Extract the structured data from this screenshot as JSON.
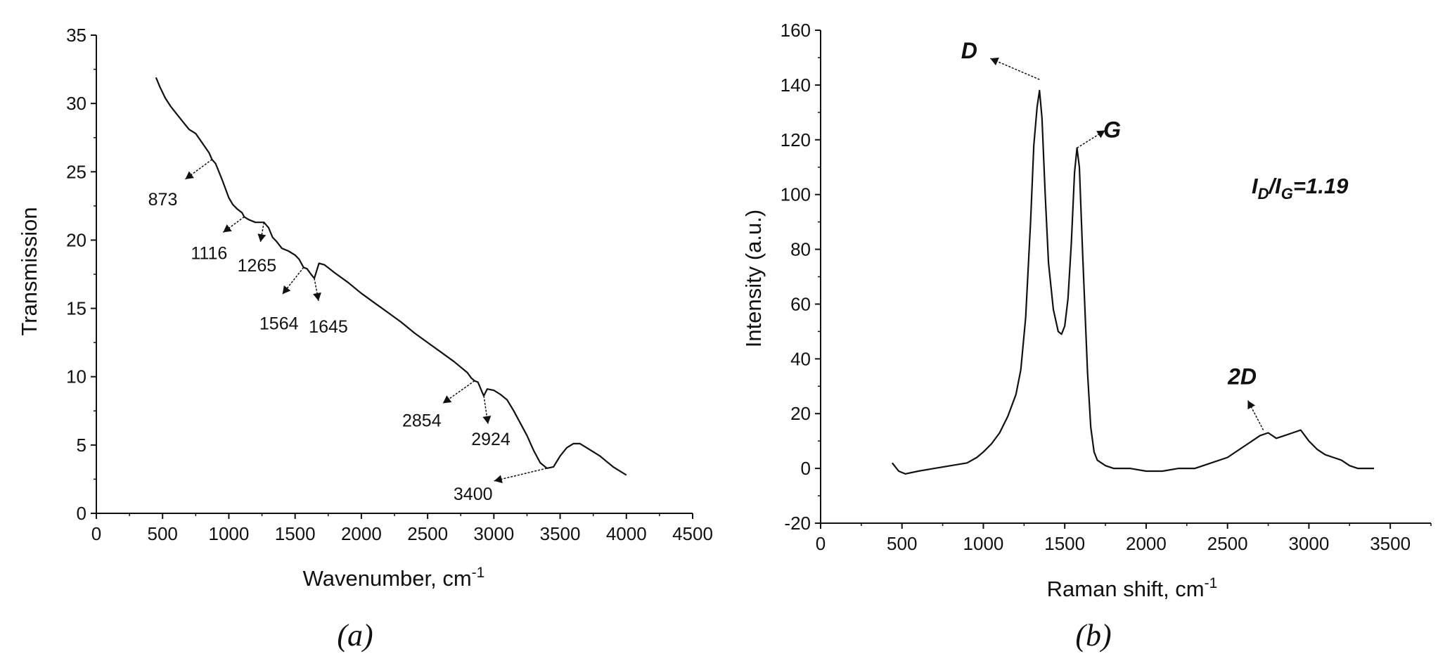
{
  "panels": {
    "a": {
      "caption": "(a)"
    },
    "b": {
      "caption": "(b)"
    }
  },
  "chart_data": [
    {
      "type": "line",
      "xlabel": "Wavenumber, cm",
      "xlabel_sup": "-1",
      "ylabel": "Transmission",
      "xlim": [
        0,
        4500
      ],
      "ylim": [
        0,
        35
      ],
      "xticks": [
        "0",
        "500",
        "1000",
        "1500",
        "2000",
        "2500",
        "3000",
        "3500",
        "4000",
        "4500"
      ],
      "yticks": [
        "0",
        "5",
        "10",
        "15",
        "20",
        "25",
        "30",
        "35"
      ],
      "grid": false,
      "color": "#111111",
      "series": [
        {
          "x": [
            450,
            480,
            520,
            560,
            600,
            650,
            700,
            750,
            800,
            850,
            873,
            900,
            950,
            1000,
            1030,
            1060,
            1100,
            1116,
            1150,
            1200,
            1265,
            1300,
            1330,
            1360,
            1400,
            1450,
            1500,
            1530,
            1564,
            1590,
            1620,
            1645,
            1680,
            1720,
            1760,
            1800,
            1900,
            2000,
            2100,
            2200,
            2300,
            2400,
            2500,
            2600,
            2700,
            2800,
            2830,
            2854,
            2880,
            2910,
            2924,
            2950,
            3000,
            3050,
            3100,
            3150,
            3200,
            3250,
            3300,
            3350,
            3400,
            3450,
            3500,
            3550,
            3600,
            3650,
            3700,
            3750,
            3800,
            3850,
            3900,
            3950,
            4000
          ],
          "y": [
            31.9,
            31.2,
            30.4,
            29.8,
            29.3,
            28.7,
            28.1,
            27.8,
            27.1,
            26.4,
            25.9,
            25.6,
            24.4,
            23.1,
            22.6,
            22.3,
            22.0,
            21.7,
            21.5,
            21.3,
            21.3,
            20.9,
            20.2,
            19.9,
            19.4,
            19.2,
            18.9,
            18.6,
            18.0,
            17.9,
            17.5,
            17.2,
            18.3,
            18.2,
            17.9,
            17.6,
            16.9,
            16.1,
            15.4,
            14.7,
            14.0,
            13.2,
            12.5,
            11.8,
            11.1,
            10.3,
            9.9,
            9.7,
            9.6,
            8.9,
            8.6,
            9.1,
            9.0,
            8.7,
            8.3,
            7.5,
            6.6,
            5.7,
            4.6,
            3.7,
            3.3,
            3.4,
            4.2,
            4.8,
            5.1,
            5.1,
            4.8,
            4.5,
            4.2,
            3.8,
            3.4,
            3.1,
            2.8
          ]
        }
      ],
      "annotations": [
        {
          "label": "873",
          "x": 873,
          "y": 25.9
        },
        {
          "label": "1116",
          "x": 1116,
          "y": 21.7
        },
        {
          "label": "1265",
          "x": 1265,
          "y": 21.3
        },
        {
          "label": "1564",
          "x": 1564,
          "y": 18.0
        },
        {
          "label": "1645",
          "x": 1645,
          "y": 17.2
        },
        {
          "label": "2854",
          "x": 2854,
          "y": 9.7
        },
        {
          "label": "2924",
          "x": 2924,
          "y": 8.6
        },
        {
          "label": "3400",
          "x": 3400,
          "y": 3.3
        }
      ]
    },
    {
      "type": "line",
      "xlabel": "Raman shift, cm",
      "xlabel_sup": "-1",
      "ylabel": "Intensity (a.u.)",
      "xlim": [
        0,
        3750
      ],
      "ylim": [
        -20,
        160
      ],
      "xticks": [
        "0",
        "500",
        "1000",
        "1500",
        "2000",
        "2500",
        "3000",
        "3500"
      ],
      "yticks": [
        "-20",
        "0",
        "20",
        "40",
        "60",
        "80",
        "100",
        "120",
        "140",
        "160"
      ],
      "grid": false,
      "color": "#111111",
      "series": [
        {
          "x": [
            440,
            480,
            520,
            600,
            700,
            800,
            900,
            960,
            1000,
            1050,
            1100,
            1150,
            1200,
            1230,
            1260,
            1290,
            1310,
            1330,
            1345,
            1360,
            1380,
            1400,
            1430,
            1460,
            1480,
            1500,
            1520,
            1540,
            1560,
            1575,
            1590,
            1610,
            1640,
            1660,
            1680,
            1700,
            1750,
            1800,
            1900,
            2000,
            2100,
            2200,
            2300,
            2400,
            2500,
            2600,
            2700,
            2750,
            2800,
            2850,
            2900,
            2950,
            3000,
            3050,
            3100,
            3150,
            3200,
            3250,
            3300,
            3350,
            3400
          ],
          "y": [
            2,
            -1,
            -2,
            -1,
            0,
            1,
            2,
            4,
            6,
            9,
            13,
            19,
            27,
            36,
            55,
            90,
            118,
            132,
            138,
            128,
            100,
            75,
            58,
            50,
            49,
            52,
            62,
            82,
            108,
            117,
            110,
            78,
            35,
            15,
            6,
            3,
            1,
            0,
            0,
            -1,
            -1,
            0,
            0,
            2,
            4,
            8,
            12,
            13,
            11,
            12,
            13,
            14,
            10,
            7,
            5,
            4,
            3,
            1,
            0,
            0,
            0
          ]
        }
      ],
      "annotations": [
        {
          "label": "D",
          "x": 1345,
          "y": 142
        },
        {
          "label": "G",
          "x": 1575,
          "y": 117
        },
        {
          "label": "2D",
          "x": 2720,
          "y": 14
        }
      ],
      "ratio_label": {
        "main": "I",
        "sub1": "D",
        "slash": "/I",
        "sub2": "G",
        "value": "=1.19"
      }
    }
  ]
}
